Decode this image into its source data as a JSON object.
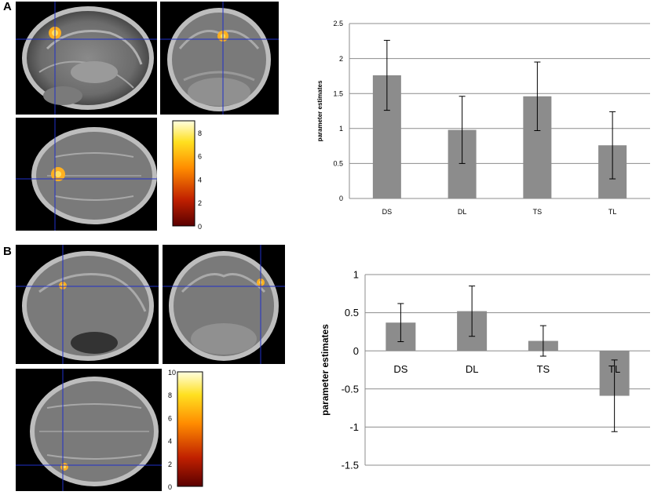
{
  "panels": [
    {
      "label": "A",
      "colorbar": {
        "ticks": [
          "8",
          "6",
          "4",
          "2",
          "0"
        ],
        "max": 9
      },
      "chart_data": {
        "type": "bar",
        "categories": [
          "DS",
          "DL",
          "TS",
          "TL"
        ],
        "values": [
          1.76,
          0.98,
          1.46,
          0.76
        ],
        "errors": [
          0.5,
          0.48,
          0.49,
          0.48
        ],
        "ylabel": "parameter estimates",
        "ylim": [
          0,
          2.5
        ],
        "yticks": [
          0,
          0.5,
          1,
          1.5,
          2,
          2.5
        ],
        "ytick_labels": [
          "0",
          "0.5",
          "1",
          "1.5",
          "2",
          "2.5"
        ],
        "grid": true,
        "bar_color": "#8c8c8c"
      }
    },
    {
      "label": "B",
      "colorbar": {
        "ticks": [
          "10",
          "8",
          "6",
          "4",
          "2",
          "0"
        ],
        "max": 10
      },
      "chart_data": {
        "type": "bar",
        "categories": [
          "DS",
          "DL",
          "TS",
          "TL"
        ],
        "values": [
          0.37,
          0.52,
          0.13,
          -0.59
        ],
        "errors": [
          0.25,
          0.33,
          0.2,
          0.47
        ],
        "ylabel": "parameter estimates",
        "ylim": [
          -1.5,
          1
        ],
        "yticks": [
          -1.5,
          -1,
          -0.5,
          0,
          0.5,
          1
        ],
        "ytick_labels": [
          "-1.5",
          "-1",
          "-0.5",
          "0",
          "0.5",
          "1"
        ],
        "grid": true,
        "bar_color": "#8c8c8c"
      }
    }
  ],
  "colors": {
    "crosshair": "#2030c8",
    "activation": "#ffa000",
    "bar": "#8c8c8c"
  }
}
